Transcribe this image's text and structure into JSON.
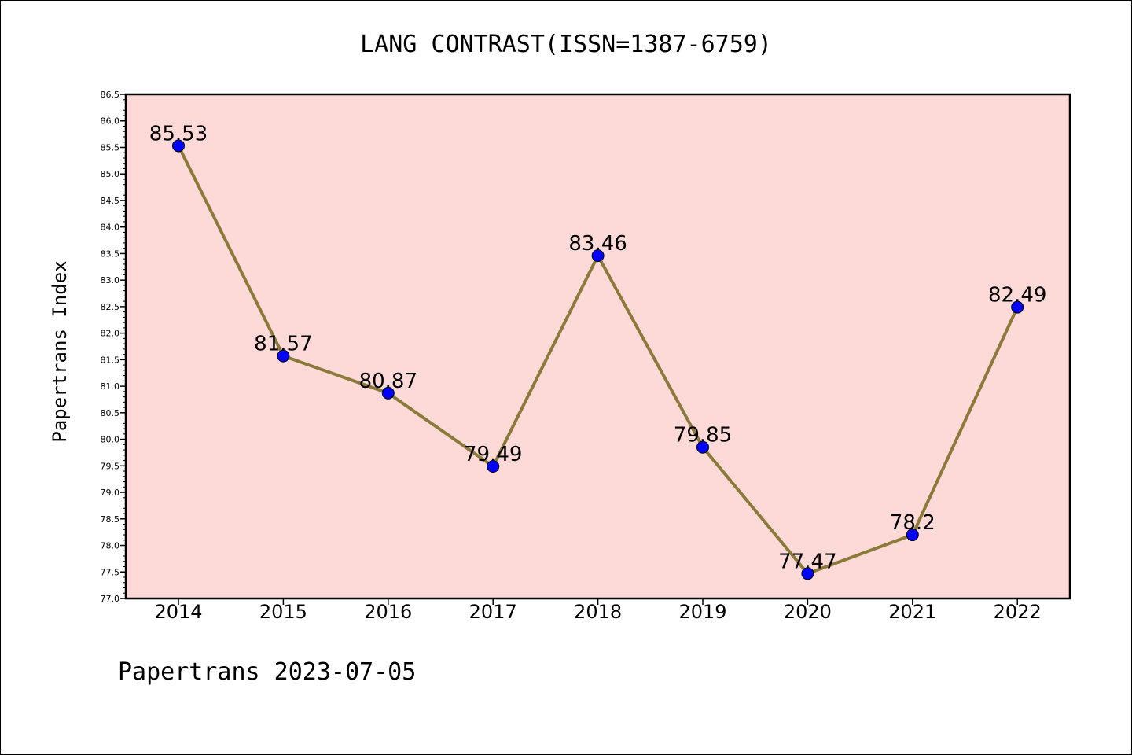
{
  "chart_data": {
    "type": "line",
    "title": "LANG CONTRAST(ISSN=1387-6759)",
    "xlabel": "",
    "ylabel": "Papertrans Index",
    "categories": [
      "2014",
      "2015",
      "2016",
      "2017",
      "2018",
      "2019",
      "2020",
      "2021",
      "2022"
    ],
    "values": [
      85.53,
      81.57,
      80.87,
      79.49,
      83.46,
      79.85,
      77.47,
      78.2,
      82.49
    ],
    "data_labels": [
      "85.53",
      "81.57",
      "80.87",
      "79.49",
      "83.46",
      "79.85",
      "77.47",
      "78.2",
      "82.49"
    ],
    "ylim": [
      77.0,
      86.5
    ],
    "yticks": [
      "77.0",
      "77.5",
      "78.0",
      "78.5",
      "79.0",
      "79.5",
      "80.0",
      "80.5",
      "81.0",
      "81.5",
      "82.0",
      "82.5",
      "83.0",
      "83.5",
      "84.0",
      "84.5",
      "85.0",
      "85.5",
      "86.0",
      "86.5"
    ],
    "grid": false,
    "colors": {
      "plot_background": "#fddad8",
      "line": "#8b7a3a",
      "marker": "#0000ff"
    }
  },
  "footer": {
    "text": "Papertrans 2023-07-05"
  }
}
